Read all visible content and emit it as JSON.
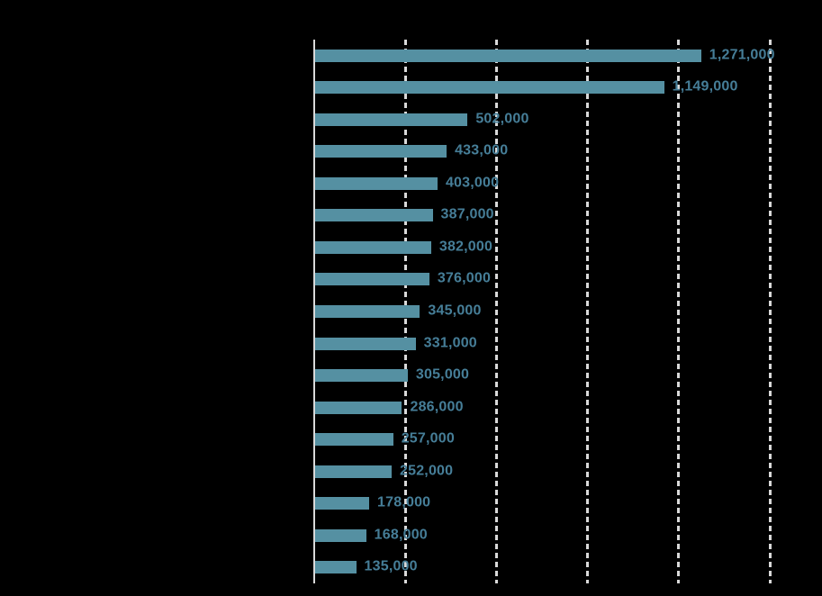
{
  "chart_data": {
    "type": "bar",
    "orientation": "horizontal",
    "title": "",
    "xlabel": "",
    "ylabel": "",
    "categories": [
      "",
      "",
      "",
      "",
      "",
      "",
      "",
      "",
      "",
      "",
      "",
      "",
      "",
      "",
      "",
      "",
      ""
    ],
    "values": [
      1271000,
      1149000,
      502000,
      433000,
      403000,
      387000,
      382000,
      376000,
      345000,
      331000,
      305000,
      286000,
      257000,
      252000,
      178000,
      168000,
      135000
    ],
    "value_labels": [
      "1,271,000",
      "1,149,000",
      "502,000",
      "433,000",
      "403,000",
      "387,000",
      "382,000",
      "376,000",
      "345,000",
      "331,000",
      "305,000",
      "286,000",
      "257,000",
      "252,000",
      "178,000",
      "168,000",
      "135,000"
    ],
    "xlim": [
      0,
      1500000
    ],
    "gridline_interval": 300000,
    "grid": "dashed-vertical",
    "legend": "none",
    "data_labels": "outside-end",
    "colors": {
      "background": "#000000",
      "bar": "#5590a2",
      "value_label": "#467e98",
      "axis_line": "#d9d9d9",
      "gridline": "#d9d9d9"
    }
  }
}
